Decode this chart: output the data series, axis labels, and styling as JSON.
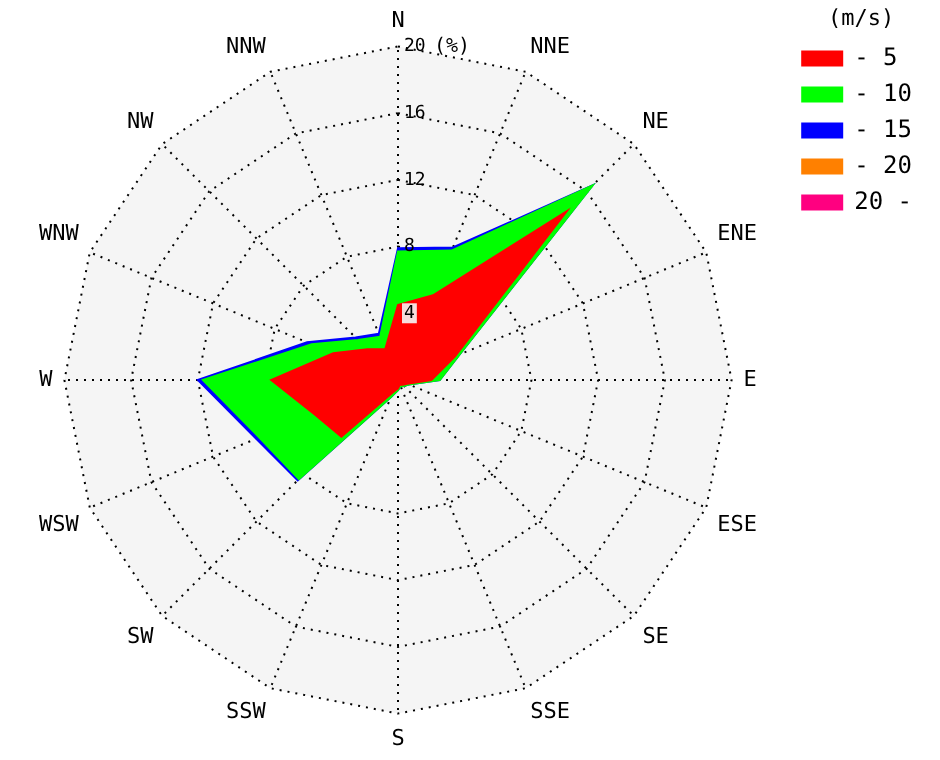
{
  "chart_data": {
    "type": "radar",
    "ylabel": "(%)",
    "legend_title": "(m/s)",
    "legend": "top right",
    "grid": true,
    "marker": "none",
    "categories": [
      "N",
      "NNE",
      "NE",
      "ENE",
      "E",
      "ESE",
      "SE",
      "SSE",
      "S",
      "SSW",
      "SW",
      "WSW",
      "W",
      "WNW",
      "NW",
      "NNW"
    ],
    "ylim": [
      0,
      20
    ],
    "yticks": [
      4,
      8,
      12,
      16,
      20
    ],
    "series": [
      {
        "name": "- 5",
        "color": "#ff0000",
        "values": [
          4.5,
          5.5,
          14.3,
          3.7,
          2.0,
          0.6,
          0.4,
          0.3,
          0.5,
          0.8,
          4.8,
          5.4,
          7.6,
          4.2,
          2.6,
          2.0
        ]
      },
      {
        "name": "- 10",
        "color": "#00ff00",
        "values": [
          7.7,
          8.4,
          16.5,
          4.0,
          2.5,
          0.7,
          0.5,
          0.4,
          0.6,
          1.1,
          8.4,
          9.0,
          11.7,
          5.6,
          3.4,
          2.8
        ]
      },
      {
        "name": "- 15",
        "color": "#0000ff",
        "values": [
          7.9,
          8.6,
          16.5,
          4.0,
          2.5,
          0.7,
          0.5,
          0.4,
          0.6,
          1.1,
          8.5,
          9.2,
          12.0,
          5.9,
          3.6,
          3.0
        ]
      },
      {
        "name": "- 20",
        "color": "#ff8000",
        "values": [
          null,
          null,
          null,
          null,
          null,
          null,
          null,
          null,
          null,
          null,
          null,
          null,
          null,
          null,
          null,
          null
        ]
      },
      {
        "name": "20 -",
        "color": "#ff0080",
        "values": [
          null,
          null,
          null,
          null,
          null,
          null,
          null,
          null,
          null,
          null,
          null,
          null,
          null,
          null,
          null,
          null
        ]
      }
    ]
  }
}
